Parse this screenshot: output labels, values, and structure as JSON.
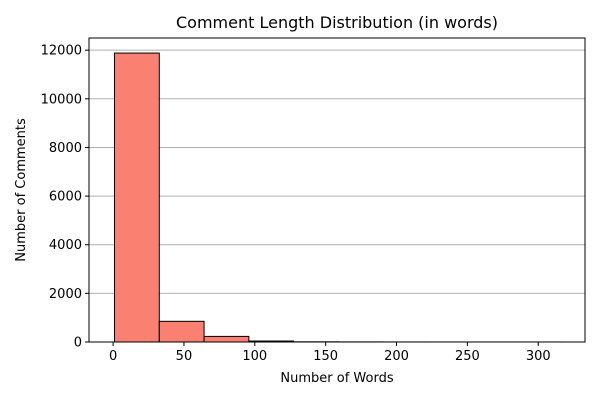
{
  "chart_data": {
    "type": "bar",
    "title": "Comment Length Distribution (in words)",
    "xlabel": "Number of Words",
    "ylabel": "Number of Comments",
    "bin_edges": [
      1,
      32.6,
      64.2,
      95.8,
      127.4,
      159,
      190.6,
      222.2,
      253.8,
      285.4,
      317
    ],
    "values": [
      11880,
      850,
      230,
      40,
      8,
      4,
      2,
      1,
      1,
      1
    ],
    "xlim": [
      -17,
      333
    ],
    "ylim": [
      0,
      12500
    ],
    "xticks": [
      0,
      50,
      100,
      150,
      200,
      250,
      300
    ],
    "yticks": [
      0,
      2000,
      4000,
      6000,
      8000,
      10000,
      12000
    ],
    "grid": "y",
    "colors": {
      "bar_fill": "#fa8072",
      "bar_edge": "#000000"
    }
  }
}
